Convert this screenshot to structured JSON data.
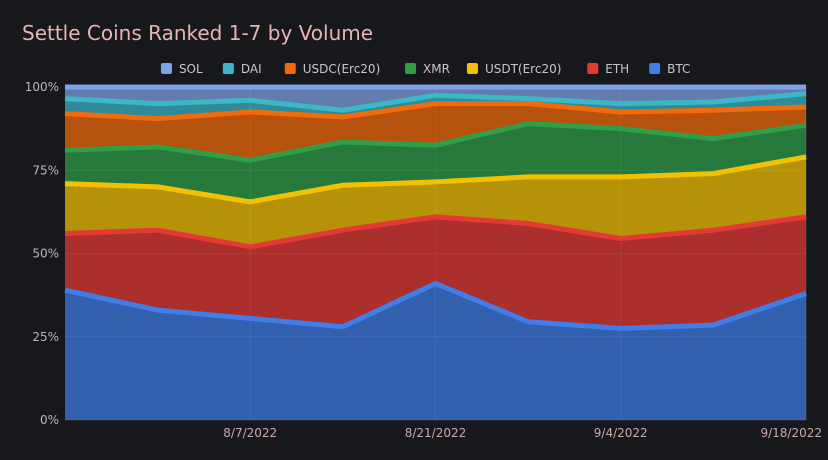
{
  "chart_data": {
    "type": "area",
    "stacked": true,
    "normalized": true,
    "title": "Settle Coins Ranked 1-7 by Volume",
    "legend_position": "top",
    "grid": true,
    "ylim": [
      0,
      100
    ],
    "y_ticks": [
      "0%",
      "25%",
      "50%",
      "75%",
      "100%"
    ],
    "x": [
      "2022-07-24",
      "2022-07-31",
      "2022-08-07",
      "2022-08-14",
      "2022-08-21",
      "2022-08-28",
      "2022-09-04",
      "2022-09-11",
      "2022-09-18"
    ],
    "x_ticks": [
      "8/7/2022",
      "8/21/2022",
      "9/4/2022",
      "9/18/2022"
    ],
    "series": [
      {
        "name": "BTC",
        "color": "#3f7de8",
        "values": [
          39,
          33,
          30.5,
          28,
          41,
          29.5,
          27.5,
          28.5,
          38
        ]
      },
      {
        "name": "ETH",
        "color": "#e53935",
        "values": [
          17,
          24,
          21.5,
          29,
          20,
          29.5,
          27,
          28.5,
          23
        ]
      },
      {
        "name": "USDT(Erc20)",
        "color": "#f2c200",
        "values": [
          15,
          13,
          13.5,
          13.5,
          10.5,
          14,
          18.5,
          17,
          18
        ]
      },
      {
        "name": "XMR",
        "color": "#2e9e48",
        "values": [
          10,
          12,
          12.5,
          13,
          11,
          16,
          14.5,
          10.5,
          9.5
        ]
      },
      {
        "name": "USDC(Erc20)",
        "color": "#f26a0a",
        "values": [
          11,
          8.5,
          14.5,
          7.5,
          12.5,
          6,
          5,
          8.5,
          5.5
        ]
      },
      {
        "name": "DAI",
        "color": "#3ab8c8",
        "values": [
          4.5,
          4.5,
          3.5,
          2,
          2.5,
          1.5,
          2.5,
          2.5,
          4
        ]
      },
      {
        "name": "SOL",
        "color": "#7fa3e8",
        "values": [
          3.5,
          5,
          4,
          7,
          2.5,
          3.5,
          5,
          4.5,
          2
        ]
      }
    ]
  }
}
